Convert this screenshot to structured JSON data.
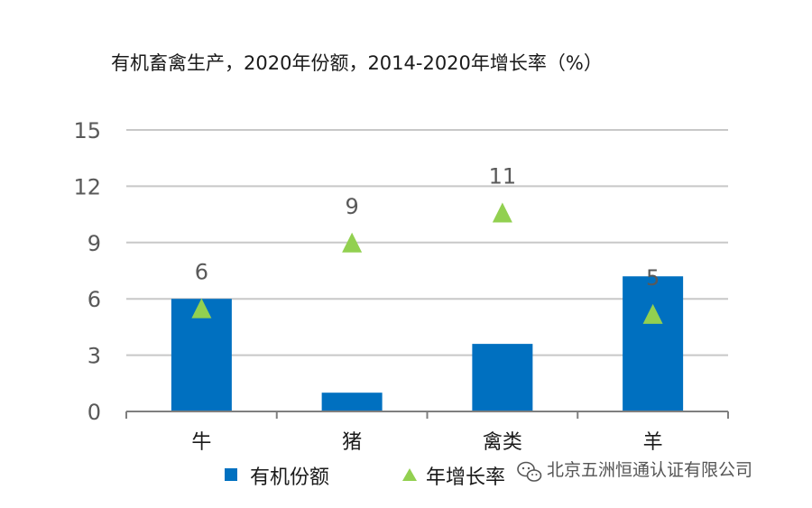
{
  "chart_data": {
    "type": "bar",
    "title": "有机畜禽生产，2020年份额，2014-2020年增长率（%）",
    "categories": [
      "牛",
      "猪",
      "禽类",
      "羊"
    ],
    "series": [
      {
        "name": "有机份额",
        "kind": "bar",
        "color": "#0070c0",
        "values": [
          6.0,
          1.0,
          3.6,
          7.2
        ]
      },
      {
        "name": "年增长率",
        "kind": "marker-triangle",
        "color": "#92d050",
        "values": [
          5.5,
          9.0,
          10.6,
          5.2
        ],
        "labels": [
          "6",
          "9",
          "11",
          "5"
        ]
      }
    ],
    "ylim": [
      0,
      15
    ],
    "yticks": [
      0,
      3,
      6,
      9,
      12,
      15
    ],
    "grid": true,
    "legend_position": "bottom",
    "xlabel": "",
    "ylabel": ""
  },
  "watermark": {
    "text": "北京五洲恒通认证有限公司",
    "icon": "wechat-icon"
  },
  "colors": {
    "bar": "#0070c0",
    "marker": "#92d050",
    "grid": "#c8c8c8",
    "axis": "#7f7f7f"
  }
}
